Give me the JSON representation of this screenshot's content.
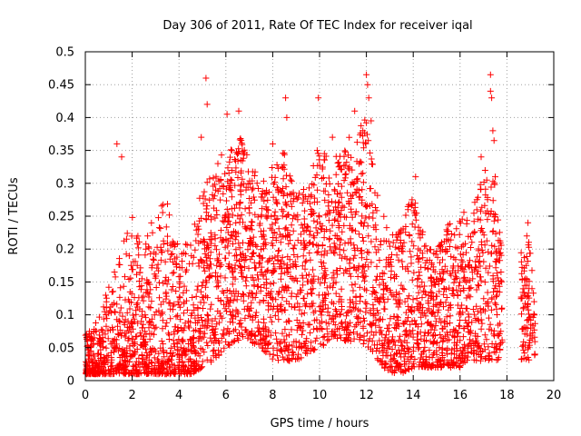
{
  "chart_data": {
    "type": "scatter",
    "title": "Day 306 of 2011, Rate Of TEC Index for receiver iqal",
    "xlabel": "GPS time / hours",
    "ylabel": "ROTI / TECUs",
    "xlim": [
      0,
      20
    ],
    "ylim": [
      0,
      0.5
    ],
    "xticks": [
      0,
      2,
      4,
      6,
      8,
      10,
      12,
      14,
      16,
      18,
      20
    ],
    "yticks": [
      0,
      0.05,
      0.1,
      0.15,
      0.2,
      0.25,
      0.3,
      0.35,
      0.4,
      0.45,
      0.5
    ],
    "xtick_labels": [
      "0",
      "2",
      "4",
      "6",
      "8",
      "10",
      "12",
      "14",
      "16",
      "18",
      "20"
    ],
    "ytick_labels": [
      "0",
      "0.05",
      "0.1",
      "0.15",
      "0.2",
      "0.25",
      "0.3",
      "0.35",
      "0.4",
      "0.45",
      "0.5"
    ],
    "grid": true,
    "marker": "+",
    "marker_color": "#ff0000",
    "gaps": [
      [
        17.8,
        18.6
      ]
    ],
    "envelope": [
      {
        "x": 0.0,
        "lo": 0.01,
        "hi": 0.07
      },
      {
        "x": 0.5,
        "lo": 0.01,
        "hi": 0.09
      },
      {
        "x": 1.0,
        "lo": 0.01,
        "hi": 0.15
      },
      {
        "x": 1.5,
        "lo": 0.01,
        "hi": 0.22
      },
      {
        "x": 2.0,
        "lo": 0.01,
        "hi": 0.25
      },
      {
        "x": 2.5,
        "lo": 0.01,
        "hi": 0.2
      },
      {
        "x": 3.0,
        "lo": 0.01,
        "hi": 0.28
      },
      {
        "x": 3.5,
        "lo": 0.01,
        "hi": 0.27
      },
      {
        "x": 4.0,
        "lo": 0.01,
        "hi": 0.2
      },
      {
        "x": 4.5,
        "lo": 0.01,
        "hi": 0.22
      },
      {
        "x": 5.0,
        "lo": 0.02,
        "hi": 0.3
      },
      {
        "x": 5.5,
        "lo": 0.03,
        "hi": 0.32
      },
      {
        "x": 6.0,
        "lo": 0.05,
        "hi": 0.36
      },
      {
        "x": 6.5,
        "lo": 0.06,
        "hi": 0.38
      },
      {
        "x": 7.0,
        "lo": 0.06,
        "hi": 0.34
      },
      {
        "x": 7.5,
        "lo": 0.05,
        "hi": 0.3
      },
      {
        "x": 8.0,
        "lo": 0.03,
        "hi": 0.33
      },
      {
        "x": 8.5,
        "lo": 0.03,
        "hi": 0.35
      },
      {
        "x": 9.0,
        "lo": 0.03,
        "hi": 0.28
      },
      {
        "x": 9.5,
        "lo": 0.04,
        "hi": 0.3
      },
      {
        "x": 10.0,
        "lo": 0.05,
        "hi": 0.36
      },
      {
        "x": 10.5,
        "lo": 0.06,
        "hi": 0.33
      },
      {
        "x": 11.0,
        "lo": 0.06,
        "hi": 0.36
      },
      {
        "x": 11.5,
        "lo": 0.06,
        "hi": 0.38
      },
      {
        "x": 12.0,
        "lo": 0.05,
        "hi": 0.4
      },
      {
        "x": 12.5,
        "lo": 0.03,
        "hi": 0.28
      },
      {
        "x": 13.0,
        "lo": 0.01,
        "hi": 0.22
      },
      {
        "x": 13.5,
        "lo": 0.01,
        "hi": 0.25
      },
      {
        "x": 14.0,
        "lo": 0.02,
        "hi": 0.28
      },
      {
        "x": 14.5,
        "lo": 0.02,
        "hi": 0.22
      },
      {
        "x": 15.0,
        "lo": 0.02,
        "hi": 0.2
      },
      {
        "x": 15.5,
        "lo": 0.02,
        "hi": 0.25
      },
      {
        "x": 16.0,
        "lo": 0.02,
        "hi": 0.26
      },
      {
        "x": 16.5,
        "lo": 0.03,
        "hi": 0.27
      },
      {
        "x": 17.0,
        "lo": 0.03,
        "hi": 0.33
      },
      {
        "x": 17.5,
        "lo": 0.03,
        "hi": 0.3
      },
      {
        "x": 17.8,
        "lo": 0.03,
        "hi": 0.2
      },
      {
        "x": 18.6,
        "lo": 0.03,
        "hi": 0.2
      },
      {
        "x": 19.0,
        "lo": 0.03,
        "hi": 0.22
      },
      {
        "x": 19.2,
        "lo": 0.02,
        "hi": 0.12
      }
    ],
    "outliers": [
      {
        "x": 5.15,
        "y": 0.46
      },
      {
        "x": 5.2,
        "y": 0.42
      },
      {
        "x": 4.95,
        "y": 0.37
      },
      {
        "x": 1.35,
        "y": 0.36
      },
      {
        "x": 1.55,
        "y": 0.34
      },
      {
        "x": 6.05,
        "y": 0.405
      },
      {
        "x": 6.55,
        "y": 0.41
      },
      {
        "x": 8.55,
        "y": 0.43
      },
      {
        "x": 8.6,
        "y": 0.4
      },
      {
        "x": 8.0,
        "y": 0.36
      },
      {
        "x": 9.95,
        "y": 0.43
      },
      {
        "x": 9.9,
        "y": 0.35
      },
      {
        "x": 10.55,
        "y": 0.37
      },
      {
        "x": 11.5,
        "y": 0.41
      },
      {
        "x": 12.0,
        "y": 0.465
      },
      {
        "x": 12.05,
        "y": 0.45
      },
      {
        "x": 12.1,
        "y": 0.43
      },
      {
        "x": 11.85,
        "y": 0.38
      },
      {
        "x": 12.2,
        "y": 0.395
      },
      {
        "x": 14.1,
        "y": 0.31
      },
      {
        "x": 16.9,
        "y": 0.34
      },
      {
        "x": 17.3,
        "y": 0.465
      },
      {
        "x": 17.3,
        "y": 0.44
      },
      {
        "x": 17.35,
        "y": 0.43
      },
      {
        "x": 17.4,
        "y": 0.38
      },
      {
        "x": 17.45,
        "y": 0.365
      },
      {
        "x": 17.5,
        "y": 0.31
      },
      {
        "x": 18.9,
        "y": 0.24
      },
      {
        "x": 18.85,
        "y": 0.22
      }
    ]
  }
}
